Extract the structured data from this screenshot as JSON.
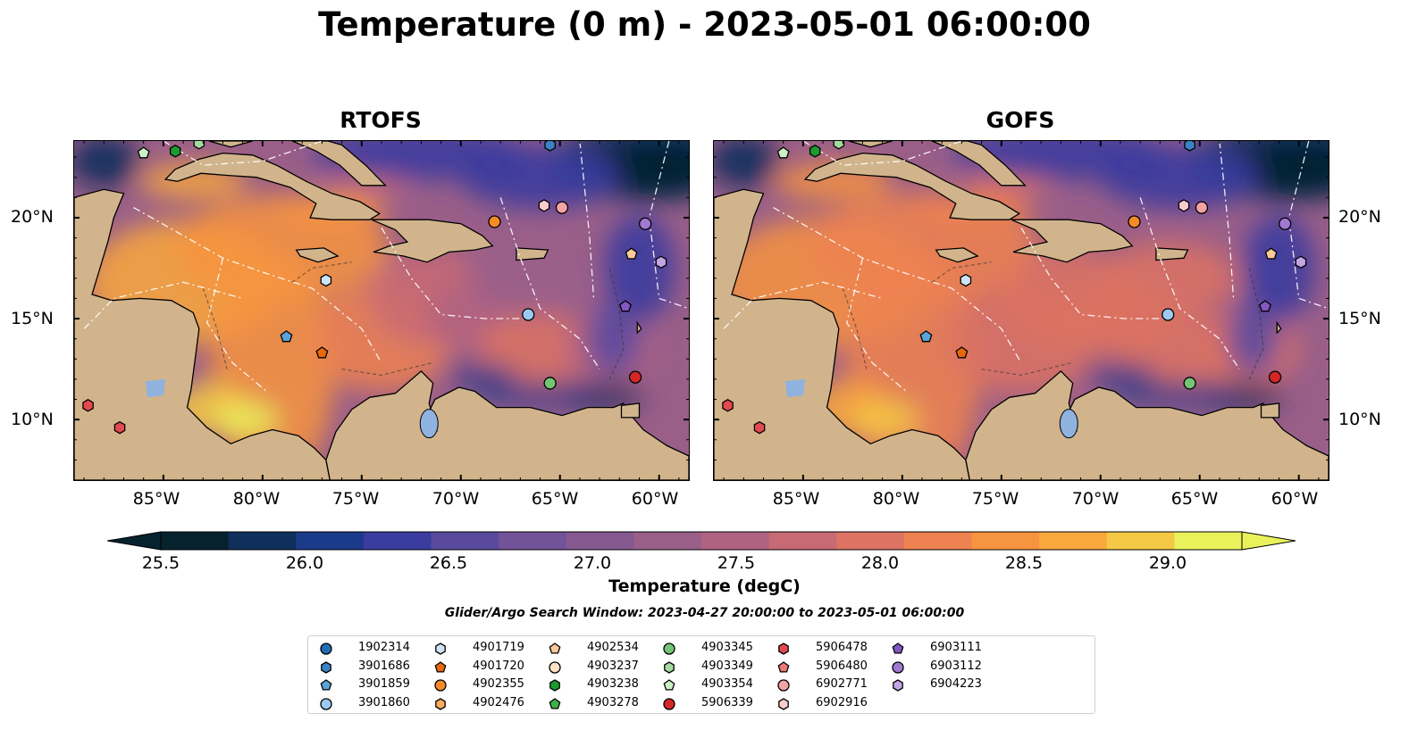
{
  "title": "Temperature (0 m) - 2023-05-01 06:00:00",
  "panels": [
    {
      "title": "RTOFS"
    },
    {
      "title": "GOFS"
    }
  ],
  "axes": {
    "lon_labels": [
      "85°W",
      "80°W",
      "75°W",
      "70°W",
      "65°W",
      "60°W"
    ],
    "lat_labels": [
      "20°N",
      "15°N",
      "10°N"
    ]
  },
  "colorbar": {
    "label": "Temperature (degC)",
    "ticks": [
      "25.5",
      "26.0",
      "26.5",
      "27.0",
      "27.5",
      "28.0",
      "28.5",
      "29.0"
    ],
    "colormap": "thermal",
    "colors": [
      "#06222f",
      "#0f2f5c",
      "#1c3a8a",
      "#3a3c9f",
      "#5a4a9e",
      "#725298",
      "#85598f",
      "#9a5f89",
      "#b06381",
      "#c86a74",
      "#dc7363",
      "#ee8250",
      "#f7943f",
      "#f9a83c",
      "#f5c945",
      "#e9f25a"
    ],
    "extend": "both"
  },
  "search_window": "Glider/Argo Search Window: 2023-04-27 20:00:00 to 2023-05-01 06:00:00",
  "legend": [
    {
      "id": "1902314",
      "marker": "circle",
      "color": "#1f6db5"
    },
    {
      "id": "3901686",
      "marker": "hexagon",
      "color": "#3a82c4"
    },
    {
      "id": "3901859",
      "marker": "pentagon",
      "color": "#5ba3d9"
    },
    {
      "id": "3901860",
      "marker": "circle",
      "color": "#9cc9ef"
    },
    {
      "id": "4901719",
      "marker": "hexagon",
      "color": "#cfe4f7"
    },
    {
      "id": "4901720",
      "marker": "pentagon",
      "color": "#e8690b"
    },
    {
      "id": "4902355",
      "marker": "circle",
      "color": "#f58a27"
    },
    {
      "id": "4902476",
      "marker": "hexagon",
      "color": "#f9aa5e"
    },
    {
      "id": "4902534",
      "marker": "pentagon",
      "color": "#fbc99a"
    },
    {
      "id": "4903237",
      "marker": "circle",
      "color": "#fde0c5"
    },
    {
      "id": "4903238",
      "marker": "hexagon",
      "color": "#1e9b2f"
    },
    {
      "id": "4903278",
      "marker": "pentagon",
      "color": "#3bb04a"
    },
    {
      "id": "4903345",
      "marker": "circle",
      "color": "#74c476"
    },
    {
      "id": "4903349",
      "marker": "hexagon",
      "color": "#a5dba0"
    },
    {
      "id": "4903354",
      "marker": "pentagon",
      "color": "#cdefc8"
    },
    {
      "id": "5906339",
      "marker": "circle",
      "color": "#d62728"
    },
    {
      "id": "5906478",
      "marker": "hexagon",
      "color": "#e34a4f"
    },
    {
      "id": "5906480",
      "marker": "pentagon",
      "color": "#ec7878"
    },
    {
      "id": "6902771",
      "marker": "circle",
      "color": "#f4a3a3"
    },
    {
      "id": "6902916",
      "marker": "hexagon",
      "color": "#f9cccc"
    },
    {
      "id": "6903111",
      "marker": "pentagon",
      "color": "#8456c0"
    },
    {
      "id": "6903112",
      "marker": "circle",
      "color": "#a07ad0"
    },
    {
      "id": "6904223",
      "marker": "hexagon",
      "color": "#c2a6e3"
    }
  ],
  "floats": [
    {
      "lon": -86,
      "lat": 23.2,
      "marker": "pentagon",
      "color": "#cdefc8"
    },
    {
      "lon": -84.4,
      "lat": 23.3,
      "marker": "hexagon",
      "color": "#1e9b2f"
    },
    {
      "lon": -83.2,
      "lat": 23.7,
      "marker": "hexagon",
      "color": "#a5dba0"
    },
    {
      "lon": -65.5,
      "lat": 23.6,
      "marker": "hexagon",
      "color": "#3a82c4"
    },
    {
      "lon": -68.3,
      "lat": 19.8,
      "marker": "circle",
      "color": "#f58a27"
    },
    {
      "lon": -65.8,
      "lat": 20.6,
      "marker": "hexagon",
      "color": "#f9cccc"
    },
    {
      "lon": -64.9,
      "lat": 20.5,
      "marker": "circle",
      "color": "#f4a3a3"
    },
    {
      "lon": -60.7,
      "lat": 19.7,
      "marker": "circle",
      "color": "#a07ad0"
    },
    {
      "lon": -61.4,
      "lat": 18.2,
      "marker": "pentagon",
      "color": "#fbc99a"
    },
    {
      "lon": -59.9,
      "lat": 17.8,
      "marker": "hexagon",
      "color": "#c2a6e3"
    },
    {
      "lon": -76.8,
      "lat": 16.9,
      "marker": "hexagon",
      "color": "#cfe4f7"
    },
    {
      "lon": -66.6,
      "lat": 15.2,
      "marker": "circle",
      "color": "#9cc9ef"
    },
    {
      "lon": -61.7,
      "lat": 15.6,
      "marker": "pentagon",
      "color": "#8456c0"
    },
    {
      "lon": -78.8,
      "lat": 14.1,
      "marker": "pentagon",
      "color": "#5ba3d9"
    },
    {
      "lon": -77,
      "lat": 13.3,
      "marker": "pentagon",
      "color": "#e8690b"
    },
    {
      "lon": -61.2,
      "lat": 12.1,
      "marker": "circle",
      "color": "#d62728"
    },
    {
      "lon": -65.5,
      "lat": 11.8,
      "marker": "circle",
      "color": "#74c476"
    },
    {
      "lon": -87.2,
      "lat": 9.6,
      "marker": "hexagon",
      "color": "#e34a4f"
    },
    {
      "lon": -88.8,
      "lat": 10.7,
      "marker": "hexagon",
      "color": "#e34a4f"
    }
  ]
}
